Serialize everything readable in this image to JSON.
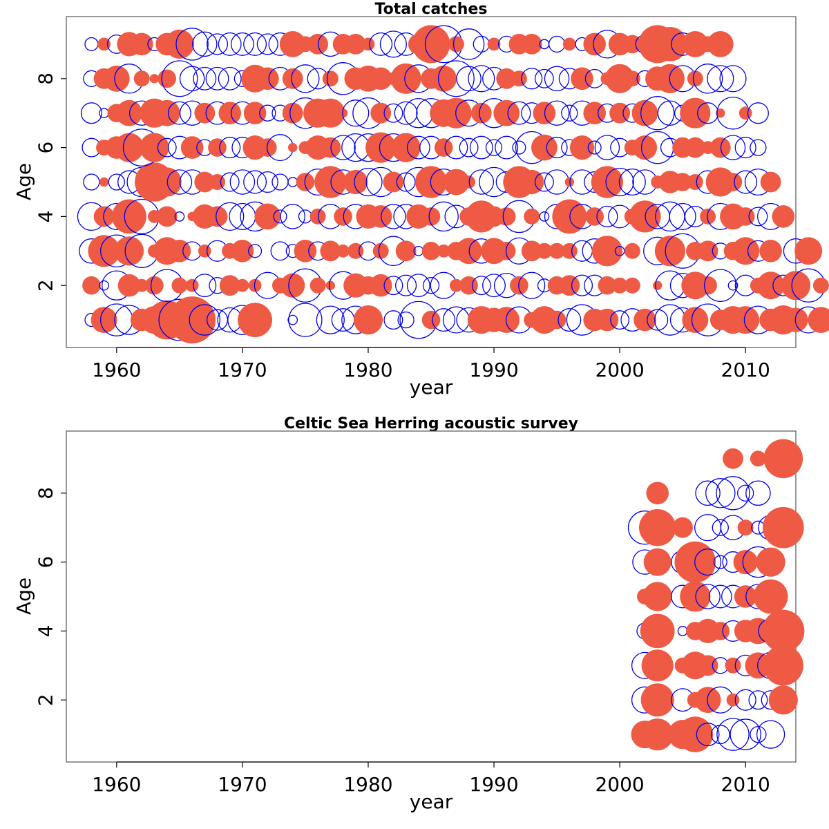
{
  "colors": {
    "positive": "#EE5A44",
    "negative": "#0000EE"
  },
  "chart_data": [
    {
      "type": "scatter",
      "subtype": "bubble",
      "title": "Total catches",
      "xlabel": "year",
      "ylabel": "Age",
      "xlim": [
        1956,
        2014
      ],
      "ylim": [
        0.2,
        9.8
      ],
      "xticks": [
        1960,
        1970,
        1980,
        1990,
        2000,
        2010
      ],
      "yticks": [
        2,
        4,
        6,
        8
      ],
      "max_radius": 34,
      "filled_means": "positive residual",
      "open_means": "negative residual",
      "series": [
        {
          "name": "",
          "age": 1,
          "r": [
            -0.2,
            0.8,
            -1.2,
            -1,
            0.6,
            0.9,
            1.8,
            -2,
            2.6,
            -1.1,
            -0.5,
            -0.7,
            -1.0,
            1.4,
            0.1,
            0,
            -0.1,
            -1.3,
            0,
            -0.9,
            -0.6,
            -0.9,
            1.0,
            0,
            -0.4,
            -0.3,
            -1.6,
            0.4,
            -0.6,
            -0.8,
            -0.7,
            0.9,
            0.7,
            0.8,
            -0.8,
            0.3,
            0.9,
            0.4,
            -0.6,
            -1.1,
            0.6,
            0.6,
            -0.4,
            -0.6,
            0.6,
            -0.5,
            -1.1,
            -0.7,
            0.8,
            -1.2,
            0.5,
            0.9,
            0.9,
            -0.9,
            0.6,
            1.0,
            0.7,
            -0.8,
            0.8
          ]
        },
        {
          "name": "",
          "age": 2,
          "r": [
            0.4,
            -0.1,
            -1.0,
            0.6,
            0.2,
            0.4,
            -1.2,
            0.3,
            0.2,
            -0.6,
            -0.3,
            0.5,
            0.2,
            0.2,
            -0.8,
            0.3,
            0.7,
            -1.3,
            0.3,
            0.1,
            -0.9,
            0.7,
            0.4,
            0.6,
            -0.4,
            -0.5,
            -0.6,
            -0.3,
            -0.8,
            0.2,
            0.4,
            -0.4,
            -0.6,
            -0.7,
            0.4,
            -0.8,
            -0.2,
            0.4,
            0.5,
            -0.5,
            -0.5,
            0.4,
            0.3,
            0.3,
            0.0,
            0.1,
            -1.0,
            -0.7,
            0.9,
            0.4,
            -1.2,
            -0.1,
            -0.5,
            0.3,
            0.9,
            -0.5,
            1.0,
            -1.3,
            0.3
          ]
        },
        {
          "name": "",
          "age": 3,
          "r": [
            -0.7,
            1.2,
            -1.2,
            1.0,
            -1.3,
            0.2,
            0.9,
            0.6,
            -0.4,
            0.2,
            -0.5,
            0.3,
            0.6,
            -0.2,
            0.0,
            -0.4,
            -0.2,
            0.6,
            -0.4,
            0.5,
            0.2,
            0.3,
            -0.4,
            0.3,
            -1.0,
            0.5,
            -0.1,
            0.4,
            0.2,
            0.4,
            0.8,
            -0.7,
            0.8,
            0.4,
            -0.8,
            0.5,
            0.3,
            0.3,
            0.3,
            -0.5,
            -0.7,
            1.1,
            -0.1,
            0.3,
            0.0,
            -0.9,
            1.1,
            -1.4,
            0.4,
            0.5,
            -0.3,
            0.4,
            0.9,
            -0.5,
            0.6,
            0.0,
            -0.7,
            0.9
          ]
        },
        {
          "name": "",
          "age": 4,
          "r": [
            -0.9,
            0.5,
            -0.8,
            1.4,
            -1.4,
            0.2,
            0.5,
            -0.1,
            0.1,
            0.7,
            0.5,
            -0.9,
            -0.8,
            -1.0,
            0.8,
            -0.2,
            -0.7,
            -0.2,
            0.3,
            -0.7,
            0.4,
            -0.7,
            0.7,
            0.6,
            -0.7,
            -0.7,
            0.7,
            0.4,
            -1.0,
            -0.6,
            0.4,
            1.2,
            0.5,
            0.4,
            -1.2,
            0.3,
            -0.1,
            -0.7,
            1.4,
            -0.7,
            0.4,
            -0.5,
            -0.6,
            0.3,
            1.2,
            -0.7,
            -1.0,
            -0.8,
            -0.5,
            0.3,
            -0.8,
            0.8,
            0.4,
            -0.4,
            -0.8,
            0.6
          ]
        },
        {
          "name": "",
          "age": 5,
          "r": [
            -0.3,
            0.1,
            -0.3,
            -0.6,
            -1.0,
            1.8,
            1.0,
            -0.7,
            -0.7,
            0.5,
            0.3,
            -0.4,
            -0.7,
            -0.6,
            -0.5,
            -0.3,
            -0.1,
            0.4,
            -0.8,
            1.2,
            -0.7,
            0.7,
            -0.9,
            -1.0,
            0.5,
            -0.4,
            -1.0,
            1.2,
            -0.8,
            0.8,
            0.2,
            -0.7,
            -1.0,
            -0.5,
            1.2,
            0.7,
            -0.4,
            -0.7,
            0.1,
            -0.7,
            -0.5,
            1.2,
            -0.9,
            -0.8,
            -0.7,
            0.2,
            0.6,
            0.4,
            0.3,
            -0.6,
            1.0,
            0.4,
            -0.6,
            -0.8,
            0.5
          ]
        },
        {
          "name": "",
          "age": 6,
          "r": [
            -0.4,
            0.3,
            0.6,
            1.0,
            -1.6,
            1.0,
            -0.4,
            -0.6,
            0.6,
            -0.3,
            0.4,
            -0.5,
            -0.5,
            0.7,
            0.4,
            -0.8,
            0.1,
            0.2,
            0.7,
            0.5,
            -0.7,
            -0.9,
            -0.9,
            1.1,
            -0.9,
            1.0,
            -0.6,
            -0.6,
            0.4,
            -0.6,
            -0.4,
            -0.6,
            -0.3,
            -0.6,
            -0.2,
            -1.2,
            0.8,
            -0.5,
            -0.3,
            0.7,
            -0.2,
            -0.7,
            -0.4,
            0.3,
            0.7,
            -1.2,
            -0.4,
            0.5,
            0.5,
            0.2,
            0.5,
            -0.7,
            -0.5,
            -0.3
          ]
        },
        {
          "name": "",
          "age": 7,
          "r": [
            -0.5,
            -0.1,
            0.4,
            0.8,
            -0.7,
            1.0,
            0.8,
            -0.6,
            -0.7,
            0.5,
            -0.6,
            0.6,
            -0.6,
            0.6,
            -0.3,
            -0.3,
            0.5,
            -1.1,
            1.0,
            1.0,
            0.1,
            -0.8,
            -1.1,
            0.5,
            -0.4,
            -0.6,
            -1.0,
            -1.0,
            0.9,
            1.1,
            -0.8,
            0.5,
            -1.0,
            0.8,
            -0.6,
            -0.5,
            0.6,
            -0.7,
            -0.3,
            -0.7,
            0.6,
            -0.4,
            0.5,
            -0.4,
            0.8,
            -1.3,
            -0.7,
            -0.3,
            1.1,
            -0.5,
            0.1,
            -1.2,
            0.2,
            -0.5
          ]
        },
        {
          "name": "",
          "age": 8,
          "r": [
            -0.3,
            0.5,
            0.8,
            -1.0,
            0.3,
            0.1,
            0.4,
            -1.5,
            -0.7,
            -0.6,
            -0.6,
            -0.6,
            -0.3,
            0.9,
            0.6,
            -0.6,
            0.5,
            -0.9,
            -0.5,
            0.3,
            -1.2,
            0.6,
            0.8,
            0.6,
            0.2,
            1.1,
            -0.9,
            0.5,
            0.8,
            -1.5,
            -0.7,
            -0.8,
            -0.6,
            0.5,
            0.3,
            -0.5,
            -0.4,
            -0.7,
            -0.5,
            0.6,
            -0.4,
            0.2,
            1.0,
            0.3,
            -0.3,
            0.7,
            1.0,
            -0.8,
            0.3,
            -1.0,
            -0.8,
            -0.8
          ]
        },
        {
          "name": "",
          "age": 9,
          "r": [
            -0.2,
            0.2,
            -0.4,
            0.7,
            0.6,
            -0.2,
            0.6,
            1.0,
            -1.2,
            -0.7,
            -0.5,
            -0.6,
            -0.6,
            -0.6,
            -0.5,
            -0.6,
            0.8,
            0.3,
            0.5,
            -0.7,
            0.5,
            0.5,
            0.2,
            -0.6,
            -0.8,
            -0.6,
            0.5,
            1.7,
            -1.6,
            0.3,
            -1.1,
            -0.3,
            0.2,
            -0.3,
            0.5,
            0.5,
            -0.1,
            -0.3,
            0.2,
            -0.2,
            0.6,
            -0.9,
            0.6,
            0.4,
            -0.4,
            1.7,
            1.4,
            -0.6,
            0.8,
            0.3,
            0.8
          ]
        }
      ],
      "x_start": 1958
    },
    {
      "type": "scatter",
      "subtype": "bubble",
      "title": "Celtic Sea Herring acoustic survey",
      "xlabel": "year",
      "ylabel": "Age",
      "xlim": [
        1956,
        2014
      ],
      "ylim": [
        0.2,
        9.8
      ],
      "xticks": [
        1960,
        1970,
        1980,
        1990,
        2000,
        2010
      ],
      "yticks": [
        2,
        4,
        6,
        8
      ],
      "max_radius": 34,
      "filled_means": "positive residual",
      "open_means": "negative residual",
      "x_start": 2002,
      "series": [
        {
          "name": "",
          "age": 1,
          "r": [
            0.9,
            1.2,
            null,
            1.0,
            1.5,
            -0.6,
            -0.4,
            -1.2,
            -1.1,
            -0.3,
            -0.9
          ]
        },
        {
          "name": "",
          "age": 2,
          "r": [
            -0.8,
            1.3,
            null,
            -0.6,
            0.3,
            0.8,
            -0.8,
            0.2,
            -0.5,
            -0.4,
            -0.4,
            1.0
          ]
        },
        {
          "name": "",
          "age": 3,
          "r": [
            -0.8,
            1.2,
            null,
            0.3,
            0.9,
            0.5,
            -0.3,
            0.3,
            -0.5,
            0.8,
            -0.8,
            1.9
          ]
        },
        {
          "name": "",
          "age": 4,
          "r": [
            -0.3,
            1.4,
            null,
            -0.1,
            0.4,
            0.7,
            0.4,
            -0.5,
            0.6,
            0.8,
            -0.7,
            2.1
          ]
        },
        {
          "name": "",
          "age": 5,
          "r": [
            0.3,
            1.0,
            null,
            -0.6,
            1.1,
            -0.7,
            -0.6,
            -0.6,
            0.6,
            -0.7,
            1.4
          ]
        },
        {
          "name": "",
          "age": 6,
          "r": [
            -0.7,
            0.9,
            null,
            -0.6,
            2.0,
            -0.8,
            -0.2,
            -0.5,
            0.7,
            -1.1,
            1.0
          ]
        },
        {
          "name": "",
          "age": 7,
          "r": [
            -1.3,
            1.6,
            null,
            0.5,
            null,
            -0.8,
            -0.3,
            -0.7,
            0.3,
            -0.2,
            -0.7,
            2.0
          ]
        },
        {
          "name": "",
          "age": 8,
          "r": [
            null,
            0.6,
            null,
            null,
            null,
            -0.7,
            -1.0,
            -1.3,
            -0.3,
            -0.7
          ]
        },
        {
          "name": "",
          "age": 9,
          "r": [
            null,
            null,
            null,
            null,
            null,
            null,
            null,
            0.5,
            null,
            0.3,
            -0.2,
            1.8
          ]
        }
      ]
    }
  ]
}
